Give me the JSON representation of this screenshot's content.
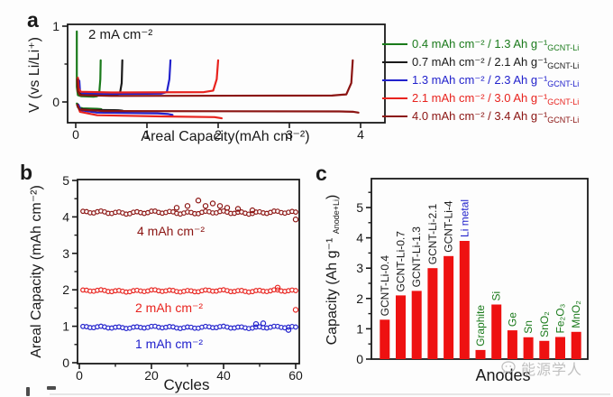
{
  "figure": {
    "panel_labels": {
      "a": "a",
      "b": "b",
      "c": "c"
    }
  },
  "watermark": {
    "text": "能源学人",
    "color": "#b2b2b2",
    "icon": "chat-bubble-smiley"
  },
  "chart_data": [
    {
      "id": "a",
      "type": "line",
      "xlabel": "Areal Capacity(mAh cm⁻²)",
      "ylabel": "V (vs Li/Li⁺)",
      "annotation": "2 mA cm⁻²",
      "xlim": [
        -0.12,
        4.34
      ],
      "ylim": [
        -0.27,
        1.02
      ],
      "xticks": [
        0,
        1,
        2,
        3,
        4
      ],
      "yticks": [
        0,
        1
      ],
      "yminor": [
        0.5
      ],
      "grid": false,
      "series": [
        {
          "name": "0.4 mAh cm-2",
          "color": "#1a7a1b",
          "pos": [
            [
              0.015,
              0.93
            ],
            [
              0.015,
              0.2
            ],
            [
              0.03,
              0.09
            ],
            [
              0.08,
              0.075
            ],
            [
              0.25,
              0.07
            ],
            [
              0.3,
              0.075
            ],
            [
              0.33,
              0.12
            ],
            [
              0.345,
              0.3
            ],
            [
              0.35,
              0.55
            ]
          ],
          "neg": [
            [
              0.015,
              -0.02
            ],
            [
              0.03,
              -0.07
            ],
            [
              0.1,
              -0.085
            ],
            [
              0.3,
              -0.09
            ],
            [
              0.36,
              -0.095
            ]
          ]
        },
        {
          "name": "0.7 mAh cm-2",
          "color": "#1a1a1a",
          "pos": [
            [
              0.035,
              0.3
            ],
            [
              0.04,
              0.15
            ],
            [
              0.06,
              0.105
            ],
            [
              0.2,
              0.095
            ],
            [
              0.55,
              0.095
            ],
            [
              0.62,
              0.11
            ],
            [
              0.645,
              0.25
            ],
            [
              0.655,
              0.55
            ]
          ],
          "neg": [
            [
              0.03,
              -0.03
            ],
            [
              0.05,
              -0.09
            ],
            [
              0.2,
              -0.105
            ],
            [
              0.6,
              -0.11
            ],
            [
              0.66,
              -0.115
            ],
            [
              0.68,
              -0.13
            ]
          ]
        },
        {
          "name": "1.3 mAh cm-2",
          "color": "#2222cc",
          "pos": [
            [
              0.05,
              0.28
            ],
            [
              0.06,
              0.15
            ],
            [
              0.09,
              0.115
            ],
            [
              0.4,
              0.105
            ],
            [
              1.2,
              0.11
            ],
            [
              1.28,
              0.13
            ],
            [
              1.315,
              0.3
            ],
            [
              1.33,
              0.55
            ]
          ],
          "neg": [
            [
              0.04,
              -0.04
            ],
            [
              0.07,
              -0.11
            ],
            [
              0.3,
              -0.14
            ],
            [
              1.15,
              -0.15
            ],
            [
              1.3,
              -0.16
            ],
            [
              1.36,
              -0.17
            ]
          ]
        },
        {
          "name": "2.1 mAh cm-2",
          "color": "#e8231e",
          "pos": [
            [
              0.03,
              0.32
            ],
            [
              0.04,
              0.18
            ],
            [
              0.07,
              0.135
            ],
            [
              0.5,
              0.125
            ],
            [
              1.8,
              0.13
            ],
            [
              1.93,
              0.15
            ],
            [
              1.98,
              0.3
            ],
            [
              2.0,
              0.55
            ]
          ],
          "neg": [
            [
              0.03,
              -0.05
            ],
            [
              0.06,
              -0.13
            ],
            [
              0.3,
              -0.175
            ],
            [
              1.2,
              -0.19
            ],
            [
              1.95,
              -0.2
            ],
            [
              2.05,
              -0.215
            ]
          ]
        },
        {
          "name": "4.0 mAh cm-2",
          "color": "#8b1412",
          "pos": [
            [
              0.02,
              0.3
            ],
            [
              0.03,
              0.14
            ],
            [
              0.06,
              0.09
            ],
            [
              0.5,
              0.08
            ],
            [
              3.6,
              0.085
            ],
            [
              3.8,
              0.1
            ],
            [
              3.87,
              0.25
            ],
            [
              3.89,
              0.55
            ]
          ],
          "neg": [
            [
              0.02,
              -0.04
            ],
            [
              0.05,
              -0.1
            ],
            [
              0.4,
              -0.12
            ],
            [
              3.7,
              -0.125
            ],
            [
              3.9,
              -0.13
            ],
            [
              3.97,
              -0.14
            ]
          ]
        }
      ],
      "legend_position": "right",
      "legend": [
        {
          "line1": "0.4 mAh cm⁻² / 1.3 Ah g⁻¹",
          "sub": "GCNT-Li",
          "color": "#1a7a1b"
        },
        {
          "line1": "0.7 mAh cm⁻² / 2.1 Ah g⁻¹",
          "sub": "GCNT-Li",
          "color": "#1a1a1a"
        },
        {
          "line1": "1.3 mAh cm⁻² / 2.3 Ah g⁻¹",
          "sub": "GCNT-Li",
          "color": "#2222cc"
        },
        {
          "line1": "2.1 mAh cm⁻² / 3.0 Ah g⁻¹",
          "sub": "GCNT-Li",
          "color": "#e8231e"
        },
        {
          "line1": "4.0 mAh cm⁻² / 3.4 Ah g⁻¹",
          "sub": "GCNT-Li",
          "color": "#8b1412"
        }
      ]
    },
    {
      "id": "b",
      "type": "scatter",
      "xlabel": "Cycles",
      "ylabel": "Areal Capacity (mAh cm⁻²)",
      "xlim": [
        0,
        61
      ],
      "ylim": [
        0,
        5
      ],
      "xticks": [
        0,
        20,
        40,
        60
      ],
      "xminor": [
        10,
        30,
        50
      ],
      "yticks": [
        0,
        1,
        2,
        3,
        4,
        5
      ],
      "yminor": [
        0.5,
        1.5,
        2.5,
        3.5,
        4.5
      ],
      "grid": false,
      "series": [
        {
          "name": "4 mAh cm⁻²",
          "color": "#8b1412",
          "value": 4.12,
          "cycles": 60,
          "jitter": 0.03,
          "outliers": [
            [
              27,
              4.25
            ],
            [
              30,
              4.3
            ],
            [
              33,
              4.45
            ],
            [
              35,
              4.3
            ],
            [
              37,
              4.37
            ],
            [
              39,
              4.3
            ],
            [
              41,
              4.25
            ],
            [
              44,
              4.22
            ],
            [
              48,
              4.18
            ],
            [
              60,
              3.93
            ]
          ],
          "label_x": 16,
          "label_y": 3.62
        },
        {
          "name": "2 mAh cm⁻²",
          "color": "#e8231e",
          "value": 1.97,
          "cycles": 60,
          "jitter": 0.022,
          "outliers": [
            [
              55,
              2.06
            ],
            [
              60,
              1.45
            ]
          ],
          "label_x": 15.5,
          "label_y": 1.52
        },
        {
          "name": "1 mAh cm⁻²",
          "color": "#2020cc",
          "value": 0.97,
          "cycles": 60,
          "jitter": 0.022,
          "outliers": [
            [
              49,
              1.06
            ],
            [
              51,
              1.08
            ],
            [
              58,
              0.9
            ]
          ],
          "label_x": 15.5,
          "label_y": 0.52
        }
      ]
    },
    {
      "id": "c",
      "type": "bar",
      "xlabel": "Anodes",
      "ylabel_main": "Capacity (Ah g⁻¹ ",
      "ylabel_sub": "Anode+Li",
      "ylabel_close": ")",
      "ylim": [
        0,
        5.9
      ],
      "yticks": [
        0,
        1,
        2,
        3,
        4,
        5
      ],
      "yminor": [
        0.5,
        1.5,
        2.5,
        3.5,
        4.5,
        5.5
      ],
      "bar_color": "#ee1111",
      "grid": false,
      "categories": [
        "GCNT-Li-0.4",
        "GCNT-Li-0.7",
        "GCNT-Li-1.3",
        "GCNT-Li-2.1",
        "GCNT-Li-4",
        "Li metal",
        "Graphite",
        "Si",
        "Ge",
        "Sn",
        "SnO₂",
        "Fe₂O₃",
        "MnO₂"
      ],
      "values": [
        1.3,
        2.1,
        2.25,
        3.0,
        3.4,
        3.9,
        0.3,
        1.8,
        0.95,
        0.72,
        0.6,
        0.73,
        0.9
      ],
      "label_colors": [
        "#1a1a1a",
        "#1a1a1a",
        "#1a1a1a",
        "#1a1a1a",
        "#1a1a1a",
        "#2020cc",
        "#1a7a1b",
        "#1a7a1b",
        "#1a7a1b",
        "#1a7a1b",
        "#1a7a1b",
        "#1a7a1b",
        "#1a7a1b"
      ]
    }
  ]
}
